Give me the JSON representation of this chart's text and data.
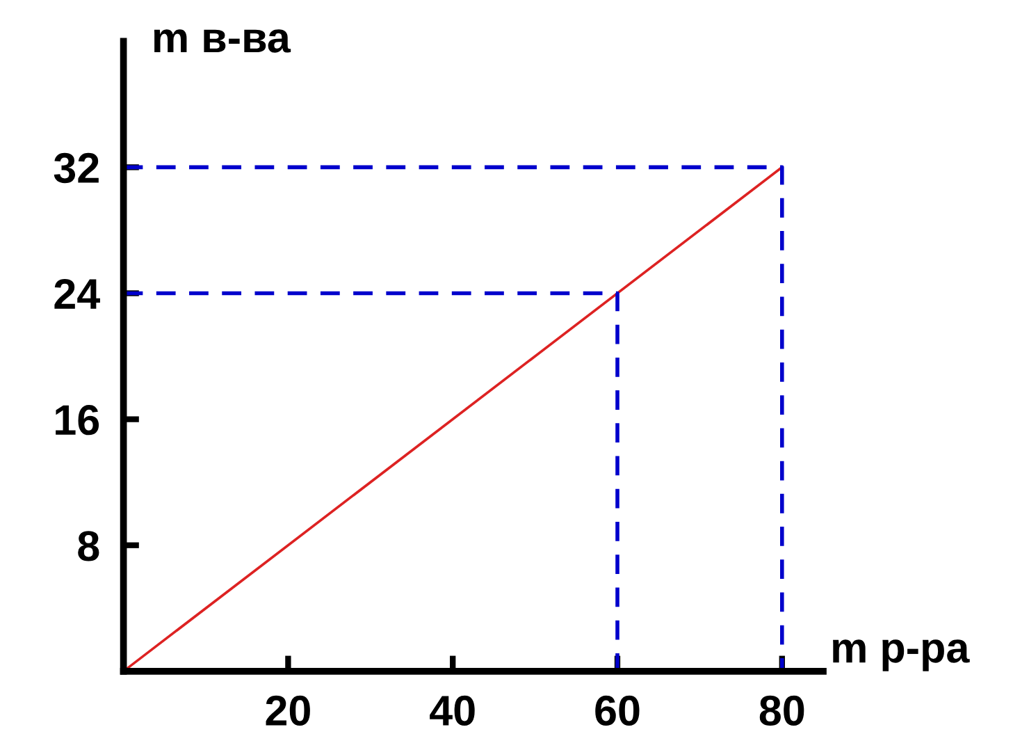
{
  "chart_data": {
    "type": "line",
    "xlabel": "m р-ра",
    "ylabel": "m в-ва",
    "xlim": [
      0,
      85
    ],
    "ylim": [
      0,
      40
    ],
    "xticks": [
      20,
      40,
      60,
      80
    ],
    "yticks": [
      8,
      16,
      24,
      32
    ],
    "grid": false,
    "legend": false,
    "series": [
      {
        "color": "#dd2222",
        "line_style": "solid",
        "x": [
          0,
          80
        ],
        "values": [
          0,
          32
        ]
      },
      {
        "color": "#0000cc",
        "line_style": "dashed",
        "x": [
          0,
          60,
          60
        ],
        "values": [
          24,
          24,
          0
        ]
      },
      {
        "color": "#0000cc",
        "line_style": "dashed",
        "x": [
          0,
          80,
          80
        ],
        "values": [
          32,
          32,
          0
        ]
      }
    ]
  }
}
